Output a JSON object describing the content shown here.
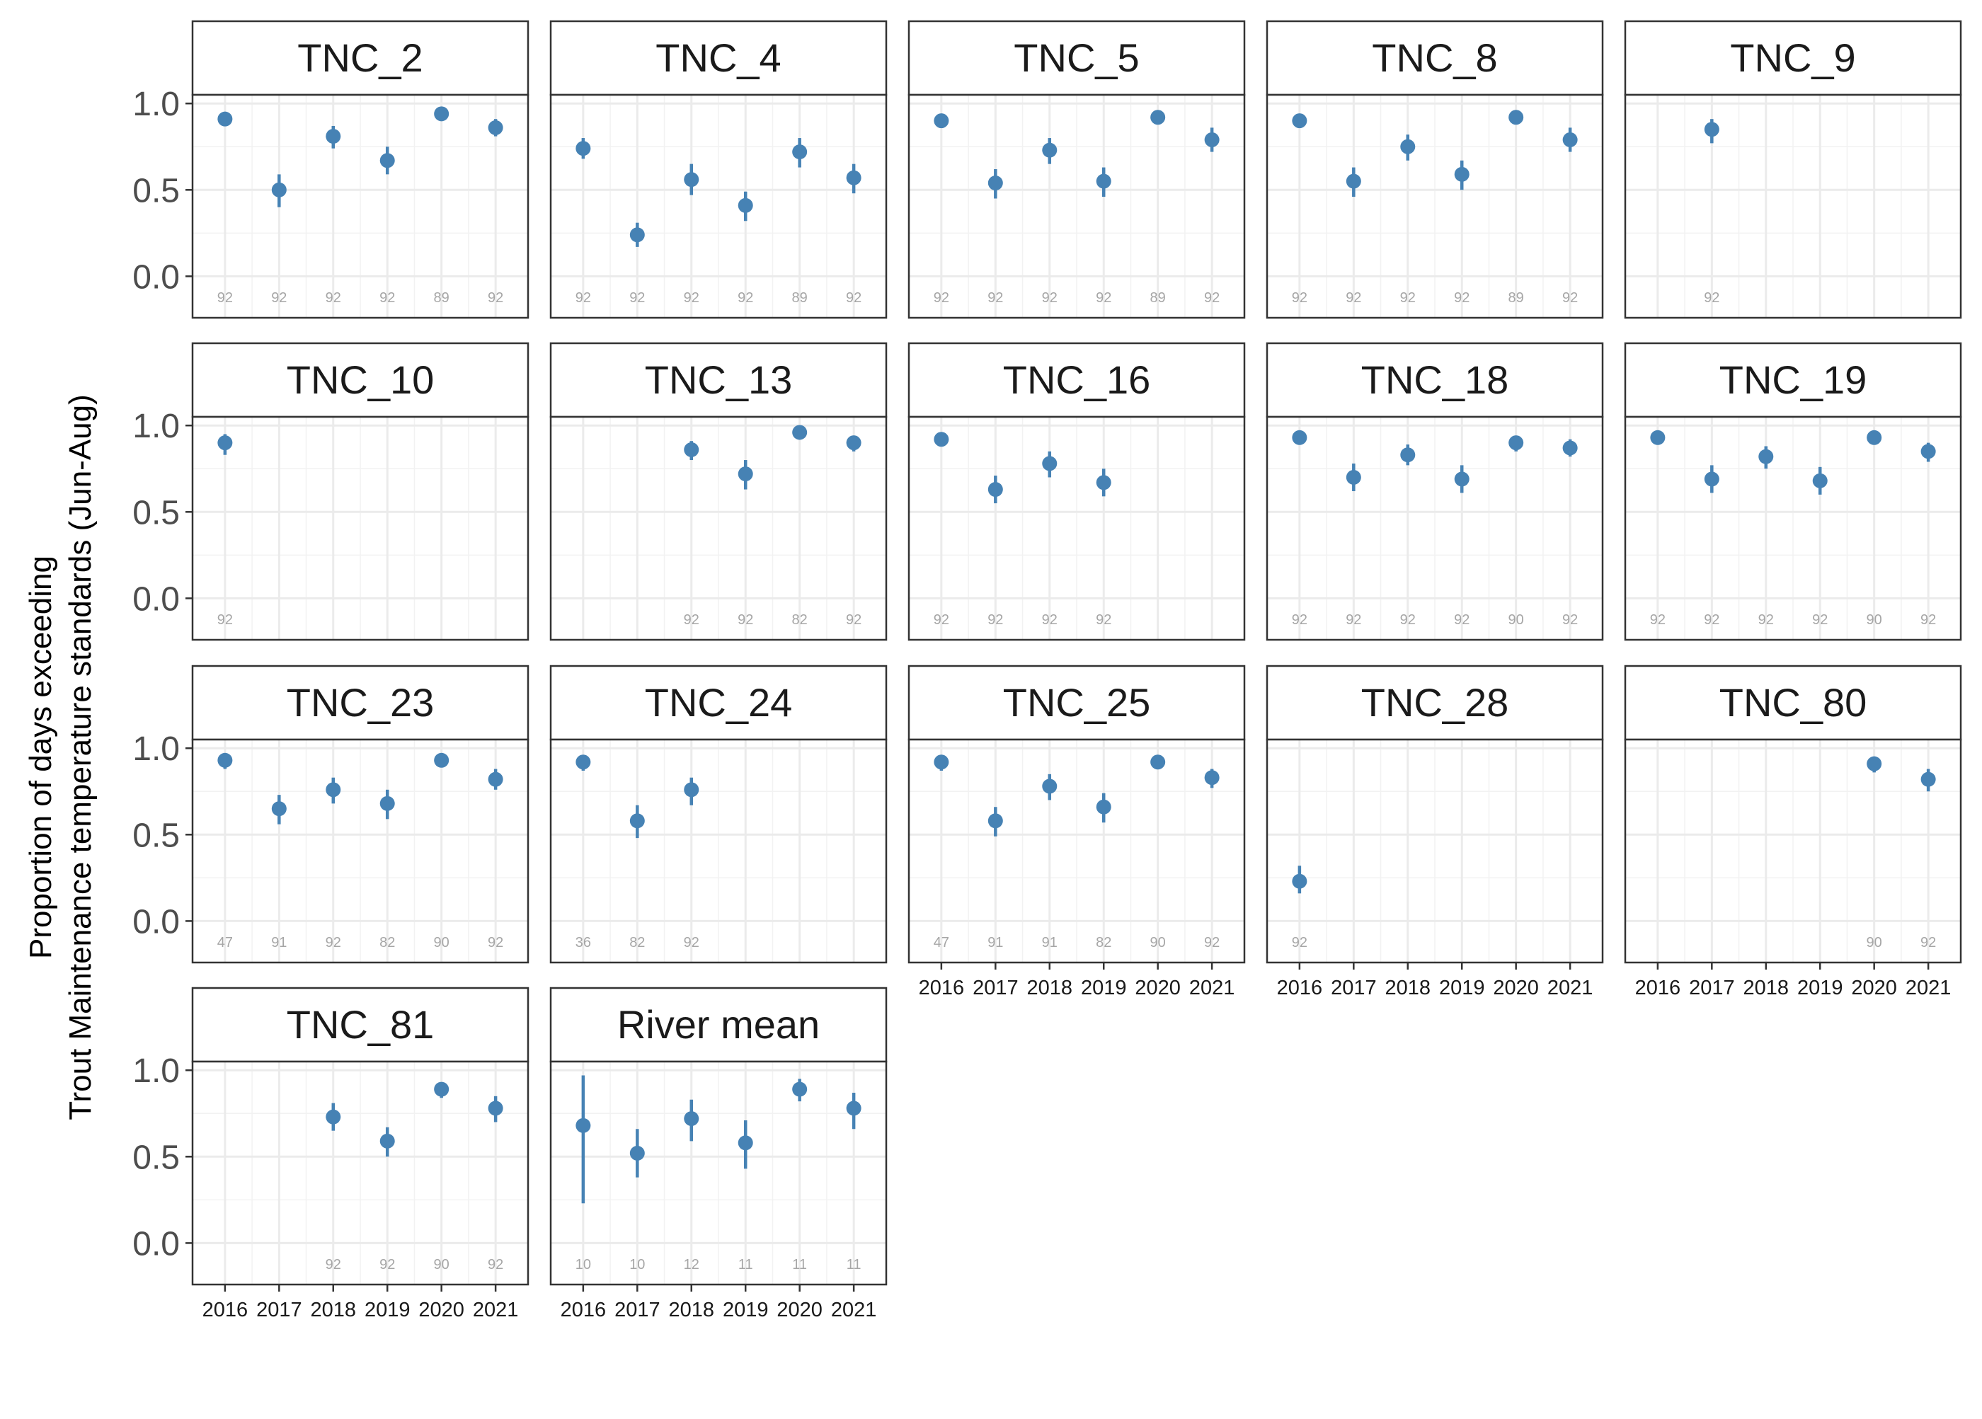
{
  "chart_data": {
    "type": "scatter",
    "subtype": "faceted point-range",
    "ylabel_line1": "Proportion of days exceeding",
    "ylabel_line2": "Trout Maintenance temperature standards (Jun-Aug)",
    "xlabel": "",
    "x_categories": [
      "2016",
      "2017",
      "2018",
      "2019",
      "2020",
      "2021"
    ],
    "y_ticks": [
      "0.0",
      "0.5",
      "1.0"
    ],
    "y_tick_values": [
      0,
      0.5,
      1.0
    ],
    "ylim": [
      -0.24,
      1.05
    ],
    "grid": true,
    "point_color": "#4682B4",
    "panels": [
      {
        "title": "TNC_2",
        "points": [
          {
            "x": "2016",
            "y": 0.91,
            "lo": 0.88,
            "hi": 0.94,
            "n": "92"
          },
          {
            "x": "2017",
            "y": 0.5,
            "lo": 0.4,
            "hi": 0.59,
            "n": "92"
          },
          {
            "x": "2018",
            "y": 0.81,
            "lo": 0.74,
            "hi": 0.87,
            "n": "92"
          },
          {
            "x": "2019",
            "y": 0.67,
            "lo": 0.59,
            "hi": 0.75,
            "n": "92"
          },
          {
            "x": "2020",
            "y": 0.94,
            "lo": 0.9,
            "hi": 0.96,
            "n": "89"
          },
          {
            "x": "2021",
            "y": 0.86,
            "lo": 0.81,
            "hi": 0.91,
            "n": "92"
          }
        ]
      },
      {
        "title": "TNC_4",
        "points": [
          {
            "x": "2016",
            "y": 0.74,
            "lo": 0.68,
            "hi": 0.8,
            "n": "92"
          },
          {
            "x": "2017",
            "y": 0.24,
            "lo": 0.17,
            "hi": 0.31,
            "n": "92"
          },
          {
            "x": "2018",
            "y": 0.56,
            "lo": 0.47,
            "hi": 0.65,
            "n": "92"
          },
          {
            "x": "2019",
            "y": 0.41,
            "lo": 0.32,
            "hi": 0.49,
            "n": "92"
          },
          {
            "x": "2020",
            "y": 0.72,
            "lo": 0.63,
            "hi": 0.8,
            "n": "89"
          },
          {
            "x": "2021",
            "y": 0.57,
            "lo": 0.48,
            "hi": 0.65,
            "n": "92"
          }
        ]
      },
      {
        "title": "TNC_5",
        "points": [
          {
            "x": "2016",
            "y": 0.9,
            "lo": 0.86,
            "hi": 0.94,
            "n": "92"
          },
          {
            "x": "2017",
            "y": 0.54,
            "lo": 0.45,
            "hi": 0.62,
            "n": "92"
          },
          {
            "x": "2018",
            "y": 0.73,
            "lo": 0.65,
            "hi": 0.8,
            "n": "92"
          },
          {
            "x": "2019",
            "y": 0.55,
            "lo": 0.46,
            "hi": 0.63,
            "n": "92"
          },
          {
            "x": "2020",
            "y": 0.92,
            "lo": 0.88,
            "hi": 0.95,
            "n": "89"
          },
          {
            "x": "2021",
            "y": 0.79,
            "lo": 0.72,
            "hi": 0.86,
            "n": "92"
          }
        ]
      },
      {
        "title": "TNC_8",
        "points": [
          {
            "x": "2016",
            "y": 0.9,
            "lo": 0.86,
            "hi": 0.94,
            "n": "92"
          },
          {
            "x": "2017",
            "y": 0.55,
            "lo": 0.46,
            "hi": 0.63,
            "n": "92"
          },
          {
            "x": "2018",
            "y": 0.75,
            "lo": 0.67,
            "hi": 0.82,
            "n": "92"
          },
          {
            "x": "2019",
            "y": 0.59,
            "lo": 0.5,
            "hi": 0.67,
            "n": "92"
          },
          {
            "x": "2020",
            "y": 0.92,
            "lo": 0.88,
            "hi": 0.95,
            "n": "89"
          },
          {
            "x": "2021",
            "y": 0.79,
            "lo": 0.72,
            "hi": 0.86,
            "n": "92"
          }
        ]
      },
      {
        "title": "TNC_9",
        "points": [
          {
            "x": "2017",
            "y": 0.85,
            "lo": 0.77,
            "hi": 0.91,
            "n": "92"
          }
        ]
      },
      {
        "title": "TNC_10",
        "points": [
          {
            "x": "2016",
            "y": 0.9,
            "lo": 0.83,
            "hi": 0.95,
            "n": "92"
          }
        ]
      },
      {
        "title": "TNC_13",
        "points": [
          {
            "x": "2018",
            "y": 0.86,
            "lo": 0.8,
            "hi": 0.91,
            "n": "92"
          },
          {
            "x": "2019",
            "y": 0.72,
            "lo": 0.63,
            "hi": 0.8,
            "n": "92"
          },
          {
            "x": "2020",
            "y": 0.96,
            "lo": 0.93,
            "hi": 0.98,
            "n": "82"
          },
          {
            "x": "2021",
            "y": 0.9,
            "lo": 0.85,
            "hi": 0.94,
            "n": "92"
          }
        ]
      },
      {
        "title": "TNC_16",
        "points": [
          {
            "x": "2016",
            "y": 0.92,
            "lo": 0.88,
            "hi": 0.95,
            "n": "92"
          },
          {
            "x": "2017",
            "y": 0.63,
            "lo": 0.55,
            "hi": 0.71,
            "n": "92"
          },
          {
            "x": "2018",
            "y": 0.78,
            "lo": 0.7,
            "hi": 0.85,
            "n": "92"
          },
          {
            "x": "2019",
            "y": 0.67,
            "lo": 0.59,
            "hi": 0.75,
            "n": "92"
          }
        ]
      },
      {
        "title": "TNC_18",
        "points": [
          {
            "x": "2016",
            "y": 0.93,
            "lo": 0.89,
            "hi": 0.96,
            "n": "92"
          },
          {
            "x": "2017",
            "y": 0.7,
            "lo": 0.62,
            "hi": 0.78,
            "n": "92"
          },
          {
            "x": "2018",
            "y": 0.83,
            "lo": 0.77,
            "hi": 0.89,
            "n": "92"
          },
          {
            "x": "2019",
            "y": 0.69,
            "lo": 0.61,
            "hi": 0.77,
            "n": "92"
          },
          {
            "x": "2020",
            "y": 0.9,
            "lo": 0.85,
            "hi": 0.94,
            "n": "90"
          },
          {
            "x": "2021",
            "y": 0.87,
            "lo": 0.82,
            "hi": 0.92,
            "n": "92"
          }
        ]
      },
      {
        "title": "TNC_19",
        "points": [
          {
            "x": "2016",
            "y": 0.93,
            "lo": 0.89,
            "hi": 0.96,
            "n": "92"
          },
          {
            "x": "2017",
            "y": 0.69,
            "lo": 0.61,
            "hi": 0.77,
            "n": "92"
          },
          {
            "x": "2018",
            "y": 0.82,
            "lo": 0.75,
            "hi": 0.88,
            "n": "92"
          },
          {
            "x": "2019",
            "y": 0.68,
            "lo": 0.6,
            "hi": 0.76,
            "n": "92"
          },
          {
            "x": "2020",
            "y": 0.93,
            "lo": 0.89,
            "hi": 0.96,
            "n": "90"
          },
          {
            "x": "2021",
            "y": 0.85,
            "lo": 0.79,
            "hi": 0.9,
            "n": "92"
          }
        ]
      },
      {
        "title": "TNC_23",
        "points": [
          {
            "x": "2016",
            "y": 0.93,
            "lo": 0.88,
            "hi": 0.96,
            "n": "47"
          },
          {
            "x": "2017",
            "y": 0.65,
            "lo": 0.56,
            "hi": 0.73,
            "n": "91"
          },
          {
            "x": "2018",
            "y": 0.76,
            "lo": 0.68,
            "hi": 0.83,
            "n": "92"
          },
          {
            "x": "2019",
            "y": 0.68,
            "lo": 0.59,
            "hi": 0.76,
            "n": "82"
          },
          {
            "x": "2020",
            "y": 0.93,
            "lo": 0.89,
            "hi": 0.96,
            "n": "90"
          },
          {
            "x": "2021",
            "y": 0.82,
            "lo": 0.76,
            "hi": 0.88,
            "n": "92"
          }
        ]
      },
      {
        "title": "TNC_24",
        "points": [
          {
            "x": "2016",
            "y": 0.92,
            "lo": 0.87,
            "hi": 0.95,
            "n": "36"
          },
          {
            "x": "2017",
            "y": 0.58,
            "lo": 0.48,
            "hi": 0.67,
            "n": "82"
          },
          {
            "x": "2018",
            "y": 0.76,
            "lo": 0.67,
            "hi": 0.83,
            "n": "92"
          }
        ]
      },
      {
        "title": "TNC_25",
        "points": [
          {
            "x": "2016",
            "y": 0.92,
            "lo": 0.87,
            "hi": 0.95,
            "n": "47"
          },
          {
            "x": "2017",
            "y": 0.58,
            "lo": 0.49,
            "hi": 0.66,
            "n": "91"
          },
          {
            "x": "2018",
            "y": 0.78,
            "lo": 0.7,
            "hi": 0.85,
            "n": "91"
          },
          {
            "x": "2019",
            "y": 0.66,
            "lo": 0.57,
            "hi": 0.74,
            "n": "82"
          },
          {
            "x": "2020",
            "y": 0.92,
            "lo": 0.88,
            "hi": 0.95,
            "n": "90"
          },
          {
            "x": "2021",
            "y": 0.83,
            "lo": 0.77,
            "hi": 0.88,
            "n": "92"
          }
        ]
      },
      {
        "title": "TNC_28",
        "points": [
          {
            "x": "2016",
            "y": 0.23,
            "lo": 0.16,
            "hi": 0.32,
            "n": "92"
          }
        ]
      },
      {
        "title": "TNC_80",
        "points": [
          {
            "x": "2020",
            "y": 0.91,
            "lo": 0.86,
            "hi": 0.94,
            "n": "90"
          },
          {
            "x": "2021",
            "y": 0.82,
            "lo": 0.75,
            "hi": 0.88,
            "n": "92"
          }
        ]
      },
      {
        "title": "TNC_81",
        "points": [
          {
            "x": "2018",
            "y": 0.73,
            "lo": 0.65,
            "hi": 0.81,
            "n": "92"
          },
          {
            "x": "2019",
            "y": 0.59,
            "lo": 0.5,
            "hi": 0.67,
            "n": "92"
          },
          {
            "x": "2020",
            "y": 0.89,
            "lo": 0.84,
            "hi": 0.93,
            "n": "90"
          },
          {
            "x": "2021",
            "y": 0.78,
            "lo": 0.7,
            "hi": 0.85,
            "n": "92"
          }
        ]
      },
      {
        "title": "River mean",
        "points": [
          {
            "x": "2016",
            "y": 0.68,
            "lo": 0.23,
            "hi": 0.97,
            "n": "10"
          },
          {
            "x": "2017",
            "y": 0.52,
            "lo": 0.38,
            "hi": 0.66,
            "n": "10"
          },
          {
            "x": "2018",
            "y": 0.72,
            "lo": 0.59,
            "hi": 0.83,
            "n": "12"
          },
          {
            "x": "2019",
            "y": 0.58,
            "lo": 0.43,
            "hi": 0.71,
            "n": "11"
          },
          {
            "x": "2020",
            "y": 0.89,
            "lo": 0.82,
            "hi": 0.95,
            "n": "11"
          },
          {
            "x": "2021",
            "y": 0.78,
            "lo": 0.66,
            "hi": 0.87,
            "n": "11"
          }
        ]
      }
    ]
  }
}
